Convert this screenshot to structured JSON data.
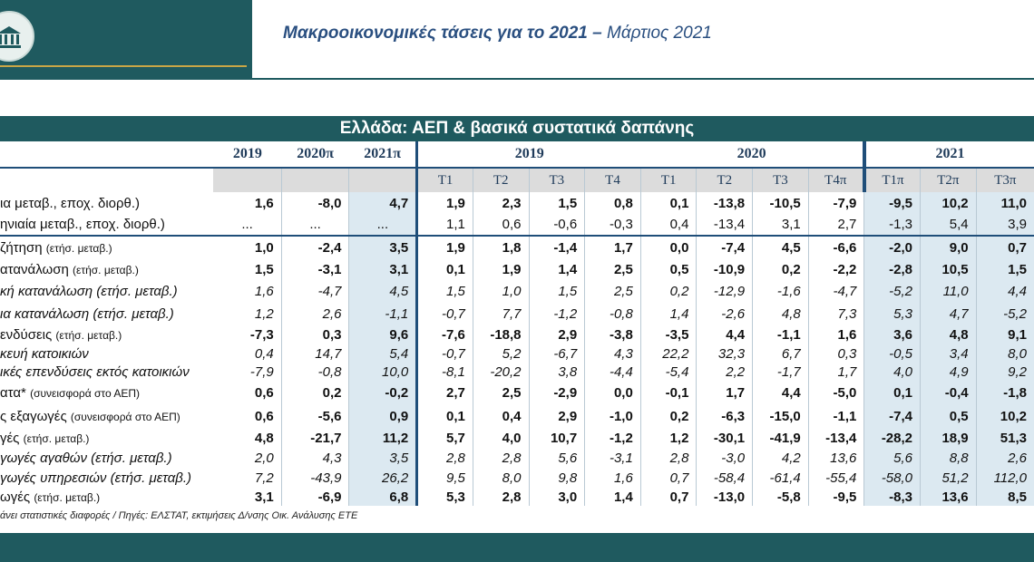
{
  "header": {
    "title_bold": "Μακροοικονομικές τάσεις για το 2021",
    "title_dash": " – ",
    "title_date": "Μάρτιος 2021"
  },
  "table": {
    "title": "Ελλάδα: ΑΕΠ & βασικά συστατικά δαπάνης",
    "annual_headers": [
      "2019",
      "2020π",
      "2021π"
    ],
    "years": [
      "2019",
      "2020",
      "2021"
    ],
    "quarters": [
      "Τ1",
      "Τ2",
      "Τ3",
      "Τ4",
      "Τ1",
      "Τ2",
      "Τ3",
      "Τ4π",
      "Τ1π",
      "Τ2π",
      "Τ3π"
    ],
    "rows": [
      {
        "label": "ια μεταβ., εποχ. διορθ.)",
        "values": [
          "1,6",
          "-8,0",
          "4,7",
          "1,9",
          "2,3",
          "1,5",
          "0,8",
          "0,1",
          "-13,8",
          "-10,5",
          "-7,9",
          "-9,5",
          "10,2",
          "11,0"
        ]
      },
      {
        "label": "ηνιαία μεταβ., εποχ. διορθ.)",
        "values": [
          "...",
          "...",
          "...",
          "1,1",
          "0,6",
          "-0,6",
          "-0,3",
          "0,4",
          "-13,4",
          "3,1",
          "2,7",
          "-1,3",
          "5,4",
          "3,9"
        ]
      },
      {
        "label": "ζήτηση",
        "note": "(ετήσ. μεταβ.)",
        "values": [
          "1,0",
          "-2,4",
          "3,5",
          "1,9",
          "1,8",
          "-1,4",
          "1,7",
          "0,0",
          "-7,4",
          "4,5",
          "-6,6",
          "-2,0",
          "9,0",
          "0,7"
        ]
      },
      {
        "label": "ατανάλωση",
        "note": "(ετήσ. μεταβ.)",
        "values": [
          "1,5",
          "-3,1",
          "3,1",
          "0,1",
          "1,9",
          "1,4",
          "2,5",
          "0,5",
          "-10,9",
          "0,2",
          "-2,2",
          "-2,8",
          "10,5",
          "1,5"
        ]
      },
      {
        "label": "κή κατανάλωση (ετήσ. μεταβ.)",
        "values": [
          "1,6",
          "-4,7",
          "4,5",
          "1,5",
          "1,0",
          "1,5",
          "2,5",
          "0,2",
          "-12,9",
          "-1,6",
          "-4,7",
          "-5,2",
          "11,0",
          "4,4"
        ]
      },
      {
        "label": "ια κατανάλωση (ετήσ. μεταβ.)",
        "values": [
          "1,2",
          "2,6",
          "-1,1",
          "-0,7",
          "7,7",
          "-1,2",
          "-0,8",
          "1,4",
          "-2,6",
          "4,8",
          "7,3",
          "5,3",
          "4,7",
          "-5,2"
        ]
      },
      {
        "label": "ενδύσεις",
        "note": "(ετήσ. μεταβ.)",
        "values": [
          "-7,3",
          "0,3",
          "9,6",
          "-7,6",
          "-18,8",
          "2,9",
          "-3,8",
          "-3,5",
          "4,4",
          "-1,1",
          "1,6",
          "3,6",
          "4,8",
          "9,1"
        ]
      },
      {
        "label": "κευή κατοικιών",
        "values": [
          "0,4",
          "14,7",
          "5,4",
          "-0,7",
          "5,2",
          "-6,7",
          "4,3",
          "22,2",
          "32,3",
          "6,7",
          "0,3",
          "-0,5",
          "3,4",
          "8,0"
        ]
      },
      {
        "label": "ικές επενδύσεις εκτός κατοικιών",
        "values": [
          "-7,9",
          "-0,8",
          "10,0",
          "-8,1",
          "-20,2",
          "3,8",
          "-4,4",
          "-5,4",
          "2,2",
          "-1,7",
          "1,7",
          "4,0",
          "4,9",
          "9,2"
        ]
      },
      {
        "label": "ατα*",
        "note": "(συνεισφορά στο ΑΕΠ)",
        "values": [
          "0,6",
          "0,2",
          "-0,2",
          "2,7",
          "2,5",
          "-2,9",
          "0,0",
          "-0,1",
          "1,7",
          "4,4",
          "-5,0",
          "0,1",
          "-0,4",
          "-1,8"
        ]
      },
      {
        "label": "ς εξαγωγές",
        "note": "(συνεισφορά στο ΑΕΠ)",
        "values": [
          "0,6",
          "-5,6",
          "0,9",
          "0,1",
          "0,4",
          "2,9",
          "-1,0",
          "0,2",
          "-6,3",
          "-15,0",
          "-1,1",
          "-7,4",
          "0,5",
          "10,2"
        ]
      },
      {
        "label": "γές",
        "note": "(ετήσ. μεταβ.)",
        "values": [
          "4,8",
          "-21,7",
          "11,2",
          "5,7",
          "4,0",
          "10,7",
          "-1,2",
          "1,2",
          "-30,1",
          "-41,9",
          "-13,4",
          "-28,2",
          "18,9",
          "51,3"
        ]
      },
      {
        "label": "γωγές αγαθών (ετήσ. μεταβ.)",
        "values": [
          "2,0",
          "4,3",
          "3,5",
          "2,8",
          "2,8",
          "5,6",
          "-3,1",
          "2,8",
          "-3,0",
          "4,2",
          "13,6",
          "5,6",
          "8,8",
          "2,6"
        ]
      },
      {
        "label": "γωγές υπηρεσιών (ετήσ. μεταβ.)",
        "values": [
          "7,2",
          "-43,9",
          "26,2",
          "9,5",
          "8,0",
          "9,8",
          "1,6",
          "0,7",
          "-58,4",
          "-61,4",
          "-55,4",
          "-58,0",
          "51,2",
          "112,0"
        ]
      },
      {
        "label": "ωγές",
        "note": "(ετήσ. μεταβ.)",
        "values": [
          "3,1",
          "-6,9",
          "6,8",
          "5,3",
          "2,8",
          "3,0",
          "1,4",
          "0,7",
          "-13,0",
          "-5,8",
          "-9,5",
          "-8,3",
          "13,6",
          "8,5"
        ]
      }
    ],
    "footer": "άνει στατιστικές διαφορές  / Πηγές: ΕΛΣΤΑΤ, εκτιμήσεις Δ/νσης Οικ. Ανάλυσης ΕΤΕ"
  },
  "colors": {
    "brand_teal": "#1f5a5f",
    "accent_gold": "#c9a646",
    "navy": "#1f4e79",
    "shade": "#dce9f1"
  },
  "icons": {
    "logo": "bank-building-logo"
  }
}
